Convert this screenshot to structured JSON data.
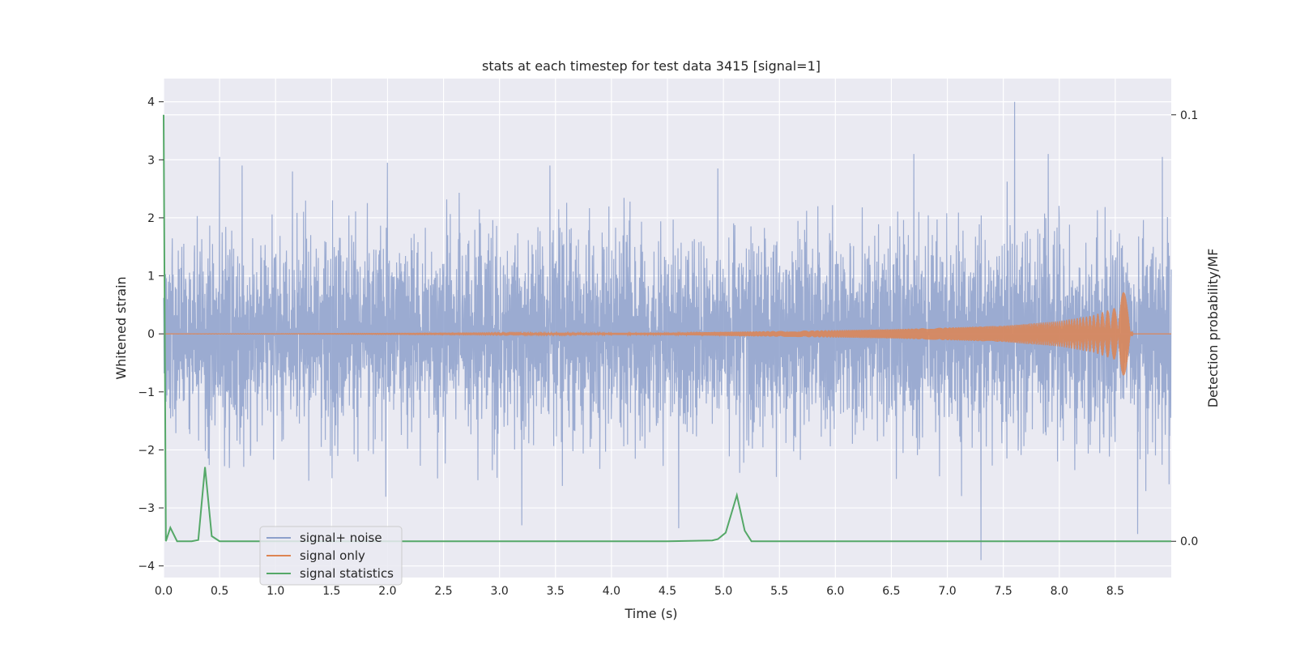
{
  "chart_data": {
    "type": "line",
    "title": "stats at each timestep for test data 3415 [signal=1]",
    "xlabel": "Time (s)",
    "ylabel": "Whitened strain",
    "y2label": "Detection probability/MF",
    "xlim": [
      0.0,
      9.0
    ],
    "ylim": [
      -4.2,
      4.4
    ],
    "y2lim": [
      -0.0085,
      0.1085
    ],
    "x_ticks": [
      "0.0",
      "0.5",
      "1.0",
      "1.5",
      "2.0",
      "2.5",
      "3.0",
      "3.5",
      "4.0",
      "4.5",
      "5.0",
      "5.5",
      "6.0",
      "6.5",
      "7.0",
      "7.5",
      "8.0",
      "8.5"
    ],
    "y_ticks": [
      "-4",
      "-3",
      "-2",
      "-1",
      "0",
      "1",
      "2",
      "3",
      "4"
    ],
    "y2_ticks": [
      "0.0",
      "0.1"
    ],
    "grid": true,
    "legend_position": "lower-left",
    "colors": {
      "noise": "#8da0cb",
      "signal": "#dd8452",
      "stats": "#55a868",
      "background": "#eaeaf2",
      "grid": "#ffffff"
    },
    "series": [
      {
        "name": "signal+ noise",
        "axis": "left",
        "description_values": {
          "sample_peaks": [
            {
              "x": 0.5,
              "y": 3.05
            },
            {
              "x": 0.7,
              "y": 2.9
            },
            {
              "x": 1.15,
              "y": 2.8
            },
            {
              "x": 2.0,
              "y": 2.95
            },
            {
              "x": 3.45,
              "y": 2.9
            },
            {
              "x": 4.95,
              "y": 2.85
            },
            {
              "x": 6.7,
              "y": 3.1
            },
            {
              "x": 7.6,
              "y": 4.0
            },
            {
              "x": 7.9,
              "y": 3.1
            },
            {
              "x": 8.92,
              "y": 3.05
            },
            {
              "x": 3.2,
              "y": -3.3
            },
            {
              "x": 4.6,
              "y": -3.35
            },
            {
              "x": 7.3,
              "y": -3.9
            },
            {
              "x": 8.7,
              "y": -3.45
            }
          ]
        }
      },
      {
        "name": "signal only",
        "axis": "left",
        "description_values": {
          "envelope": [
            {
              "x": 0.0,
              "y": 0.0
            },
            {
              "x": 4.5,
              "y": 0.02
            },
            {
              "x": 5.5,
              "y": 0.05
            },
            {
              "x": 6.5,
              "y": 0.08
            },
            {
              "x": 7.5,
              "y": 0.14
            },
            {
              "x": 8.0,
              "y": 0.22
            },
            {
              "x": 8.3,
              "y": 0.32
            },
            {
              "x": 8.5,
              "y": 0.45
            },
            {
              "x": 8.62,
              "y": 0.9
            },
            {
              "x": 8.66,
              "y": 0.0
            },
            {
              "x": 9.0,
              "y": 0.0
            }
          ]
        }
      },
      {
        "name": "signal statistics",
        "axis": "right",
        "x": [
          0.0,
          0.02,
          0.06,
          0.12,
          0.25,
          0.31,
          0.37,
          0.43,
          0.5,
          4.5,
          4.9,
          4.95,
          5.02,
          5.12,
          5.19,
          5.25,
          9.0
        ],
        "y": [
          0.1,
          0.0,
          0.0032,
          0.0,
          0.0,
          0.0003,
          0.0174,
          0.0012,
          0.0,
          0.0,
          0.0002,
          0.0005,
          0.002,
          0.0108,
          0.0025,
          0.0,
          0.0
        ]
      }
    ]
  }
}
